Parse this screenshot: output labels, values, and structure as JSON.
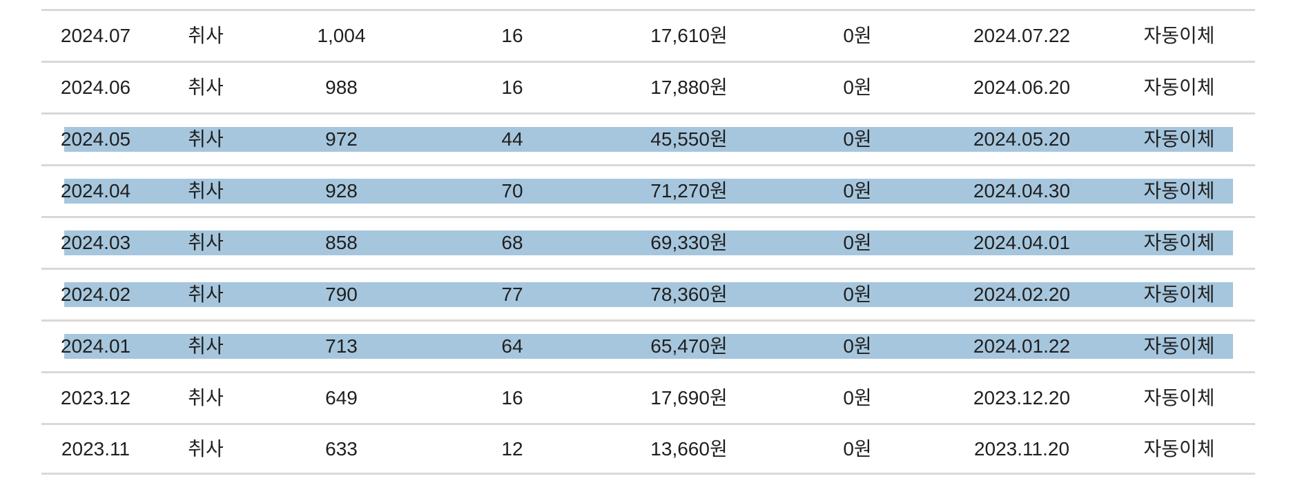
{
  "table": {
    "rows": [
      {
        "highlighted": false,
        "cells": [
          "2024.07",
          "취사",
          "1,004",
          "16",
          "17,610원",
          "0원",
          "2024.07.22",
          "자동이체"
        ]
      },
      {
        "highlighted": false,
        "cells": [
          "2024.06",
          "취사",
          "988",
          "16",
          "17,880원",
          "0원",
          "2024.06.20",
          "자동이체"
        ]
      },
      {
        "highlighted": true,
        "cells": [
          "2024.05",
          "취사",
          "972",
          "44",
          "45,550원",
          "0원",
          "2024.05.20",
          "자동이체"
        ]
      },
      {
        "highlighted": true,
        "cells": [
          "2024.04",
          "취사",
          "928",
          "70",
          "71,270원",
          "0원",
          "2024.04.30",
          "자동이체"
        ]
      },
      {
        "highlighted": true,
        "cells": [
          "2024.03",
          "취사",
          "858",
          "68",
          "69,330원",
          "0원",
          "2024.04.01",
          "자동이체"
        ]
      },
      {
        "highlighted": true,
        "cells": [
          "2024.02",
          "취사",
          "790",
          "77",
          "78,360원",
          "0원",
          "2024.02.20",
          "자동이체"
        ]
      },
      {
        "highlighted": true,
        "cells": [
          "2024.01",
          "취사",
          "713",
          "64",
          "65,470원",
          "0원",
          "2024.01.22",
          "자동이체"
        ]
      },
      {
        "highlighted": false,
        "cells": [
          "2023.12",
          "취사",
          "649",
          "16",
          "17,690원",
          "0원",
          "2023.12.20",
          "자동이체"
        ]
      },
      {
        "highlighted": false,
        "cells": [
          "2023.11",
          "취사",
          "633",
          "12",
          "13,660원",
          "0원",
          "2023.11.20",
          "자동이체"
        ]
      }
    ]
  },
  "colors": {
    "highlight": "#a6c6dd",
    "divider": "#d8d8d8",
    "text": "#1f1f1f"
  }
}
